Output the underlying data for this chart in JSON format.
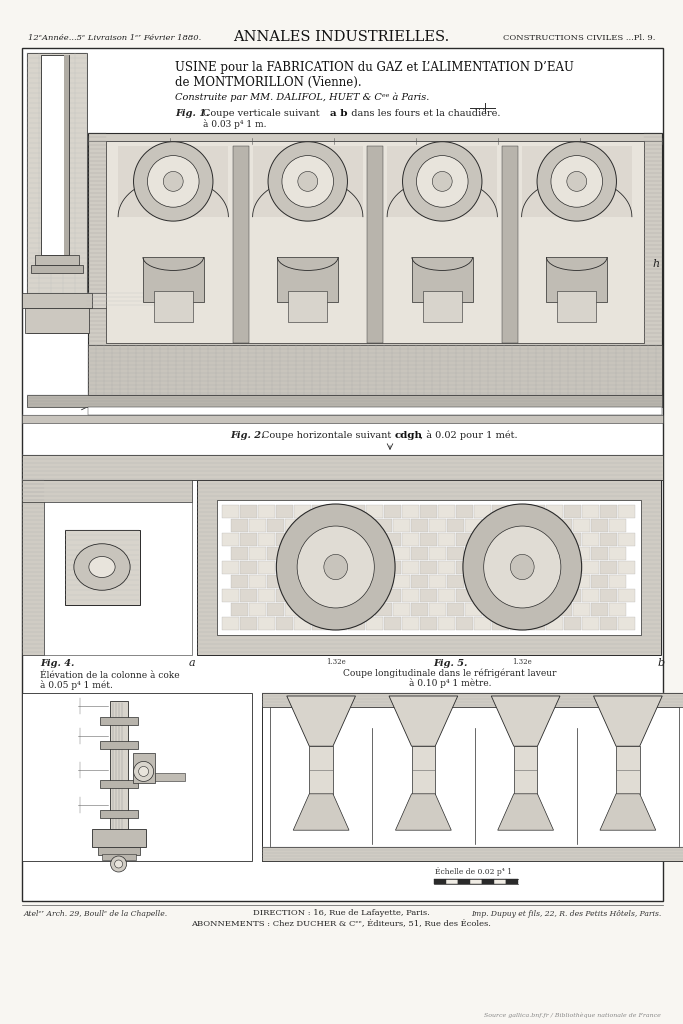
{
  "page_bg": "#f0ede8",
  "paper_bg": "#f8f6f2",
  "white": "#ffffff",
  "lc": "#2a2a2a",
  "gray_hatch": "#888888",
  "gray_fill": "#c8c4bc",
  "gray_dark_fill": "#909090",
  "gray_mid_fill": "#b0acA4",
  "title_top_left": "12ᵉAnnée...5ᵉ Livraison 1ᵉʳ Février 1880.",
  "title_center": "ANNALES INDUSTRIELLES.",
  "title_top_right": "CONSTRUCTIONS CIVILES ...Pl. 9.",
  "main_title_line1": "USINE pour la FABRICATION du GAZ et L’ALIMENTATION D’EAU",
  "main_title_line2": "de MONTMORILLON (Vienne).",
  "main_title_line3": "Construite par MM. DALIFOL, HUET & Cᵉᵉ à Paris.",
  "footer_left": "Atelᵉʳ Arch. 29, Boullᵉ de la Chapelle.",
  "footer_center1": "DIRECTION : 16, Rue de Lafayette, Paris.",
  "footer_center2": "ABONNEMENTS : Chez DUCHER & Cᵉᵉ, Éditeurs, 51, Rue des Écoles.",
  "footer_right": "Imp. Dupuy et fils, 22, R. des Petits Hôtels, Paris.",
  "footer_bnf": "Source gallica.bnf.fr / Bibliothèque nationale de France"
}
